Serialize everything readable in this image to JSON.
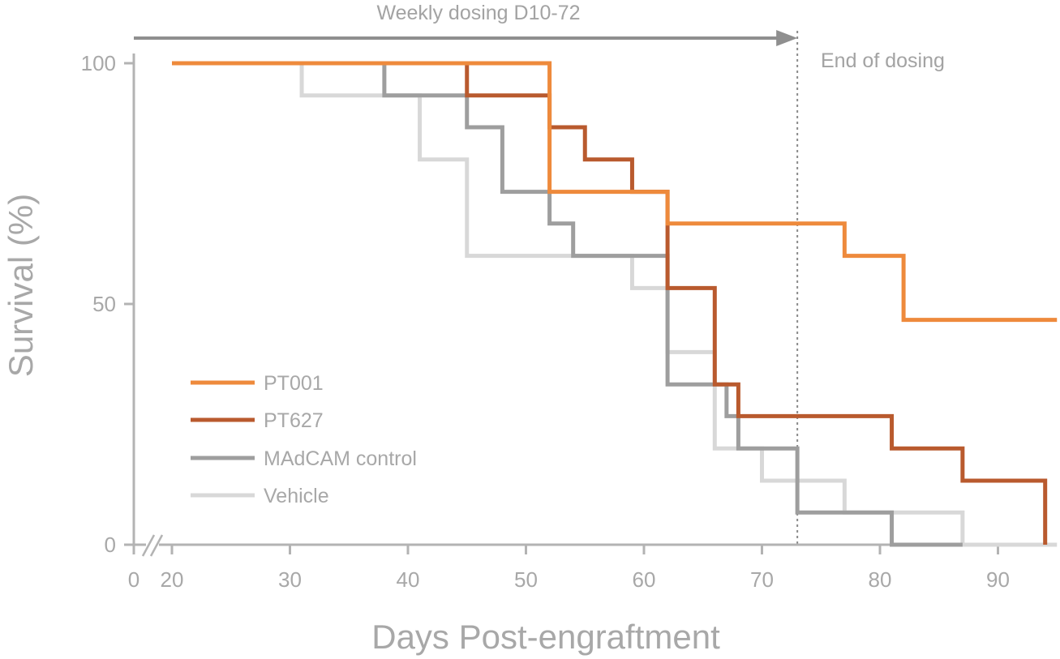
{
  "chart_data": {
    "type": "line",
    "subtype": "step",
    "xlabel": "Days Post-engraftment",
    "ylabel": "Survival (%)",
    "xlim": [
      20,
      95
    ],
    "ylim": [
      0,
      100
    ],
    "x_ticks": [
      {
        "value": 0,
        "label": "0"
      },
      {
        "value": 20,
        "label": "20"
      },
      {
        "value": 30,
        "label": "30"
      },
      {
        "value": 40,
        "label": "40"
      },
      {
        "value": 50,
        "label": "50"
      },
      {
        "value": 60,
        "label": "60"
      },
      {
        "value": 70,
        "label": "70"
      },
      {
        "value": 80,
        "label": "80"
      },
      {
        "value": 90,
        "label": "90"
      }
    ],
    "x_axis_break": true,
    "y_ticks": [
      {
        "value": 0,
        "label": "0"
      },
      {
        "value": 50,
        "label": "50"
      },
      {
        "value": 100,
        "label": "100"
      }
    ],
    "grid": false,
    "legend_position": "bottom-left",
    "series": [
      {
        "name": "PT001",
        "color": "#ee8a3c",
        "x": [
          20,
          52,
          62,
          77,
          82,
          95
        ],
        "y": [
          100,
          73.3,
          66.7,
          60,
          46.7,
          46.7
        ]
      },
      {
        "name": "PT627",
        "color": "#b95a2e",
        "x": [
          20,
          38,
          45,
          52,
          55,
          59,
          62,
          66,
          68,
          81,
          87,
          94
        ],
        "y": [
          100,
          100,
          93.3,
          86.7,
          80,
          73.3,
          53.3,
          33.3,
          26.7,
          20,
          13.3,
          0
        ]
      },
      {
        "name": "MAdCAM control",
        "color": "#9e9e9e",
        "x": [
          20,
          31,
          38,
          41,
          45,
          48,
          52,
          54,
          62,
          67,
          68,
          73,
          77,
          81,
          87
        ],
        "y": [
          100,
          100,
          93.3,
          93.3,
          86.7,
          73.3,
          66.7,
          60,
          33.3,
          26.7,
          20,
          6.7,
          6.7,
          0,
          0
        ]
      },
      {
        "name": "Vehicle",
        "color": "#d8d8d8",
        "x": [
          20,
          31,
          41,
          45,
          59,
          62,
          66,
          70,
          77,
          87,
          95
        ],
        "y": [
          100,
          93.3,
          80,
          60,
          53.3,
          40,
          20,
          13.3,
          6.7,
          0,
          0
        ]
      }
    ],
    "annotations": {
      "dosing_label": "Weekly dosing D10-72",
      "dosing_end_day": 73,
      "end_label": "End of dosing"
    }
  }
}
